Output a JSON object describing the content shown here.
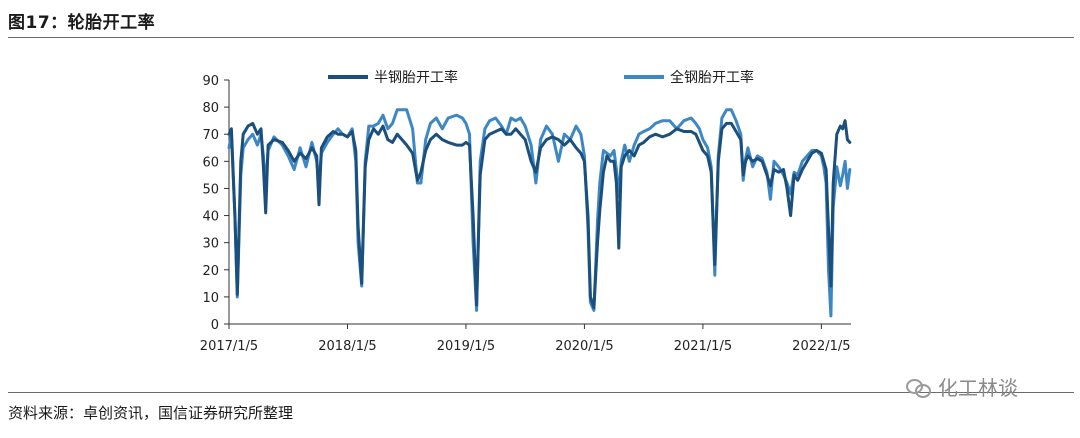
{
  "figure": {
    "title": "图17：轮胎开工率",
    "source": "资料来源：卓创资讯，国信证券研究所整理",
    "watermark": "化工林谈"
  },
  "chart_data": {
    "type": "line",
    "ylim": [
      0,
      90
    ],
    "yticks": [
      0,
      10,
      20,
      30,
      40,
      50,
      60,
      70,
      80,
      90
    ],
    "xticks": [
      "2017/1/5",
      "2018/1/5",
      "2019/1/5",
      "2020/1/5",
      "2021/1/5",
      "2022/1/5"
    ],
    "xlim_years": [
      2017.0,
      2022.25
    ],
    "grid": false,
    "legend_position": "top",
    "series": [
      {
        "name": "半钢胎开工率",
        "color": "#1b4f7c",
        "points": [
          [
            2017.0,
            70
          ],
          [
            2017.02,
            72
          ],
          [
            2017.05,
            40
          ],
          [
            2017.07,
            11
          ],
          [
            2017.1,
            60
          ],
          [
            2017.12,
            70
          ],
          [
            2017.16,
            73
          ],
          [
            2017.2,
            74
          ],
          [
            2017.24,
            70
          ],
          [
            2017.27,
            72
          ],
          [
            2017.29,
            58
          ],
          [
            2017.31,
            41
          ],
          [
            2017.33,
            66
          ],
          [
            2017.38,
            68
          ],
          [
            2017.45,
            67
          ],
          [
            2017.5,
            64
          ],
          [
            2017.55,
            60
          ],
          [
            2017.6,
            63
          ],
          [
            2017.65,
            61
          ],
          [
            2017.7,
            65
          ],
          [
            2017.74,
            62
          ],
          [
            2017.76,
            44
          ],
          [
            2017.78,
            65
          ],
          [
            2017.83,
            69
          ],
          [
            2017.88,
            71
          ],
          [
            2017.92,
            70
          ],
          [
            2017.96,
            70
          ],
          [
            2018.0,
            69
          ],
          [
            2018.04,
            71
          ],
          [
            2018.07,
            64
          ],
          [
            2018.09,
            36
          ],
          [
            2018.12,
            15
          ],
          [
            2018.15,
            58
          ],
          [
            2018.18,
            68
          ],
          [
            2018.22,
            72
          ],
          [
            2018.26,
            70
          ],
          [
            2018.3,
            73
          ],
          [
            2018.34,
            68
          ],
          [
            2018.38,
            67
          ],
          [
            2018.42,
            70
          ],
          [
            2018.46,
            68
          ],
          [
            2018.5,
            66
          ],
          [
            2018.55,
            63
          ],
          [
            2018.59,
            53
          ],
          [
            2018.62,
            56
          ],
          [
            2018.66,
            64
          ],
          [
            2018.7,
            68
          ],
          [
            2018.75,
            70
          ],
          [
            2018.8,
            68
          ],
          [
            2018.85,
            67
          ],
          [
            2018.92,
            66
          ],
          [
            2018.97,
            66
          ],
          [
            2019.0,
            67
          ],
          [
            2019.03,
            66
          ],
          [
            2019.06,
            40
          ],
          [
            2019.09,
            7
          ],
          [
            2019.12,
            55
          ],
          [
            2019.16,
            68
          ],
          [
            2019.2,
            70
          ],
          [
            2019.25,
            71
          ],
          [
            2019.3,
            72
          ],
          [
            2019.34,
            70
          ],
          [
            2019.38,
            70
          ],
          [
            2019.42,
            72
          ],
          [
            2019.46,
            70
          ],
          [
            2019.5,
            68
          ],
          [
            2019.55,
            60
          ],
          [
            2019.59,
            56
          ],
          [
            2019.63,
            65
          ],
          [
            2019.68,
            68
          ],
          [
            2019.73,
            69
          ],
          [
            2019.78,
            68
          ],
          [
            2019.83,
            66
          ],
          [
            2019.88,
            68
          ],
          [
            2019.93,
            65
          ],
          [
            2019.97,
            63
          ],
          [
            2020.0,
            60
          ],
          [
            2020.03,
            40
          ],
          [
            2020.05,
            10
          ],
          [
            2020.08,
            6
          ],
          [
            2020.11,
            30
          ],
          [
            2020.13,
            42
          ],
          [
            2020.16,
            56
          ],
          [
            2020.19,
            62
          ],
          [
            2020.22,
            60
          ],
          [
            2020.25,
            60
          ],
          [
            2020.27,
            52
          ],
          [
            2020.29,
            28
          ],
          [
            2020.31,
            58
          ],
          [
            2020.34,
            62
          ],
          [
            2020.38,
            64
          ],
          [
            2020.42,
            62
          ],
          [
            2020.46,
            66
          ],
          [
            2020.5,
            67
          ],
          [
            2020.55,
            69
          ],
          [
            2020.6,
            70
          ],
          [
            2020.66,
            69
          ],
          [
            2020.72,
            70
          ],
          [
            2020.78,
            72
          ],
          [
            2020.84,
            71
          ],
          [
            2020.9,
            71
          ],
          [
            2020.94,
            70
          ],
          [
            2020.97,
            67
          ],
          [
            2021.0,
            64
          ],
          [
            2021.04,
            62
          ],
          [
            2021.07,
            56
          ],
          [
            2021.1,
            22
          ],
          [
            2021.13,
            60
          ],
          [
            2021.16,
            72
          ],
          [
            2021.2,
            74
          ],
          [
            2021.24,
            74
          ],
          [
            2021.28,
            71
          ],
          [
            2021.32,
            68
          ],
          [
            2021.34,
            55
          ],
          [
            2021.36,
            60
          ],
          [
            2021.38,
            62
          ],
          [
            2021.42,
            60
          ],
          [
            2021.46,
            61
          ],
          [
            2021.5,
            60
          ],
          [
            2021.54,
            55
          ],
          [
            2021.57,
            51
          ],
          [
            2021.6,
            57
          ],
          [
            2021.64,
            56
          ],
          [
            2021.68,
            57
          ],
          [
            2021.71,
            50
          ],
          [
            2021.74,
            40
          ],
          [
            2021.77,
            55
          ],
          [
            2021.8,
            53
          ],
          [
            2021.84,
            57
          ],
          [
            2021.88,
            60
          ],
          [
            2021.92,
            63
          ],
          [
            2021.96,
            64
          ],
          [
            2022.0,
            63
          ],
          [
            2022.02,
            60
          ],
          [
            2022.04,
            57
          ],
          [
            2022.06,
            35
          ],
          [
            2022.08,
            14
          ],
          [
            2022.1,
            52
          ],
          [
            2022.13,
            70
          ],
          [
            2022.16,
            73
          ],
          [
            2022.18,
            72
          ],
          [
            2022.2,
            75
          ],
          [
            2022.22,
            68
          ],
          [
            2022.24,
            67
          ]
        ]
      },
      {
        "name": "全钢胎开工率",
        "color": "#3d87c4",
        "points": [
          [
            2017.0,
            65
          ],
          [
            2017.02,
            70
          ],
          [
            2017.05,
            40
          ],
          [
            2017.07,
            10
          ],
          [
            2017.1,
            55
          ],
          [
            2017.12,
            65
          ],
          [
            2017.16,
            68
          ],
          [
            2017.2,
            70
          ],
          [
            2017.24,
            66
          ],
          [
            2017.27,
            70
          ],
          [
            2017.29,
            62
          ],
          [
            2017.31,
            50
          ],
          [
            2017.33,
            64
          ],
          [
            2017.38,
            69
          ],
          [
            2017.45,
            66
          ],
          [
            2017.5,
            62
          ],
          [
            2017.55,
            57
          ],
          [
            2017.6,
            65
          ],
          [
            2017.65,
            58
          ],
          [
            2017.7,
            67
          ],
          [
            2017.74,
            60
          ],
          [
            2017.76,
            52
          ],
          [
            2017.78,
            63
          ],
          [
            2017.83,
            67
          ],
          [
            2017.88,
            70
          ],
          [
            2017.92,
            72
          ],
          [
            2017.96,
            70
          ],
          [
            2018.0,
            69
          ],
          [
            2018.04,
            72
          ],
          [
            2018.07,
            60
          ],
          [
            2018.09,
            30
          ],
          [
            2018.12,
            14
          ],
          [
            2018.15,
            60
          ],
          [
            2018.18,
            73
          ],
          [
            2018.22,
            73
          ],
          [
            2018.26,
            74
          ],
          [
            2018.3,
            77
          ],
          [
            2018.34,
            72
          ],
          [
            2018.38,
            74
          ],
          [
            2018.42,
            79
          ],
          [
            2018.46,
            79
          ],
          [
            2018.5,
            79
          ],
          [
            2018.55,
            72
          ],
          [
            2018.59,
            52
          ],
          [
            2018.62,
            52
          ],
          [
            2018.66,
            68
          ],
          [
            2018.7,
            74
          ],
          [
            2018.75,
            76
          ],
          [
            2018.8,
            72
          ],
          [
            2018.85,
            76
          ],
          [
            2018.92,
            77
          ],
          [
            2018.97,
            76
          ],
          [
            2019.0,
            74
          ],
          [
            2019.03,
            70
          ],
          [
            2019.06,
            30
          ],
          [
            2019.09,
            5
          ],
          [
            2019.12,
            60
          ],
          [
            2019.16,
            72
          ],
          [
            2019.2,
            75
          ],
          [
            2019.25,
            76
          ],
          [
            2019.3,
            73
          ],
          [
            2019.34,
            70
          ],
          [
            2019.38,
            76
          ],
          [
            2019.42,
            75
          ],
          [
            2019.46,
            76
          ],
          [
            2019.5,
            73
          ],
          [
            2019.55,
            66
          ],
          [
            2019.59,
            52
          ],
          [
            2019.63,
            68
          ],
          [
            2019.68,
            73
          ],
          [
            2019.73,
            70
          ],
          [
            2019.78,
            60
          ],
          [
            2019.83,
            70
          ],
          [
            2019.88,
            68
          ],
          [
            2019.93,
            73
          ],
          [
            2019.97,
            70
          ],
          [
            2020.0,
            62
          ],
          [
            2020.03,
            35
          ],
          [
            2020.05,
            8
          ],
          [
            2020.08,
            5
          ],
          [
            2020.11,
            38
          ],
          [
            2020.13,
            52
          ],
          [
            2020.16,
            64
          ],
          [
            2020.19,
            63
          ],
          [
            2020.22,
            62
          ],
          [
            2020.25,
            64
          ],
          [
            2020.27,
            57
          ],
          [
            2020.29,
            47
          ],
          [
            2020.31,
            60
          ],
          [
            2020.34,
            66
          ],
          [
            2020.38,
            60
          ],
          [
            2020.42,
            66
          ],
          [
            2020.46,
            70
          ],
          [
            2020.5,
            71
          ],
          [
            2020.55,
            72
          ],
          [
            2020.6,
            74
          ],
          [
            2020.66,
            75
          ],
          [
            2020.72,
            75
          ],
          [
            2020.78,
            72
          ],
          [
            2020.84,
            75
          ],
          [
            2020.9,
            76
          ],
          [
            2020.94,
            74
          ],
          [
            2020.97,
            72
          ],
          [
            2021.0,
            68
          ],
          [
            2021.04,
            65
          ],
          [
            2021.07,
            58
          ],
          [
            2021.1,
            18
          ],
          [
            2021.13,
            62
          ],
          [
            2021.16,
            76
          ],
          [
            2021.2,
            79
          ],
          [
            2021.24,
            79
          ],
          [
            2021.28,
            75
          ],
          [
            2021.32,
            70
          ],
          [
            2021.34,
            53
          ],
          [
            2021.36,
            61
          ],
          [
            2021.38,
            65
          ],
          [
            2021.42,
            58
          ],
          [
            2021.46,
            62
          ],
          [
            2021.5,
            61
          ],
          [
            2021.54,
            56
          ],
          [
            2021.57,
            46
          ],
          [
            2021.6,
            60
          ],
          [
            2021.64,
            58
          ],
          [
            2021.68,
            55
          ],
          [
            2021.71,
            52
          ],
          [
            2021.74,
            48
          ],
          [
            2021.77,
            56
          ],
          [
            2021.8,
            55
          ],
          [
            2021.84,
            60
          ],
          [
            2021.88,
            62
          ],
          [
            2021.92,
            64
          ],
          [
            2021.96,
            64
          ],
          [
            2022.0,
            62
          ],
          [
            2022.02,
            58
          ],
          [
            2022.04,
            52
          ],
          [
            2022.06,
            20
          ],
          [
            2022.08,
            3
          ],
          [
            2022.1,
            43
          ],
          [
            2022.13,
            58
          ],
          [
            2022.16,
            51
          ],
          [
            2022.18,
            55
          ],
          [
            2022.2,
            60
          ],
          [
            2022.22,
            50
          ],
          [
            2022.24,
            57
          ]
        ]
      }
    ]
  }
}
